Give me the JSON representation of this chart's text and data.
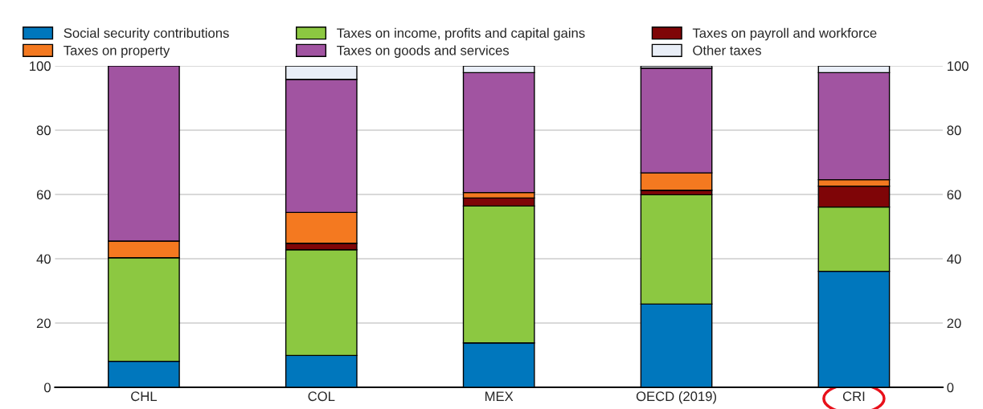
{
  "chart_data": {
    "type": "bar",
    "stacked": true,
    "categories": [
      "CHL",
      "COL",
      "MEX",
      "OECD (2019)",
      "CRI"
    ],
    "series": [
      {
        "name": "Social security contributions",
        "color": "#0077bd",
        "values": [
          8.1,
          9.9,
          13.8,
          25.9,
          36.1
        ]
      },
      {
        "name": "Taxes on income, profits and capital gains",
        "color": "#8cc841",
        "values": [
          32.2,
          32.9,
          42.6,
          34.0,
          20.0
        ]
      },
      {
        "name": "Taxes on payroll and workforce",
        "color": "#7f0507",
        "values": [
          null,
          2.0,
          2.5,
          1.4,
          6.5
        ]
      },
      {
        "name": "Taxes on property",
        "color": "#f47920",
        "values": [
          5.2,
          9.6,
          1.7,
          5.4,
          2.0
        ]
      },
      {
        "name": "Taxes on goods and services",
        "color": "#a154a1",
        "values": [
          54.5,
          41.4,
          37.3,
          32.6,
          33.3
        ]
      },
      {
        "name": "Other taxes",
        "color": "#e9eef7",
        "values": [
          null,
          4.2,
          2.1,
          0.7,
          2.1
        ]
      }
    ],
    "ylim": [
      0,
      100
    ],
    "yticks": [
      0,
      20,
      40,
      60,
      80,
      100
    ],
    "y2lim": [
      0,
      100
    ],
    "y2ticks": [
      0,
      20,
      40,
      60,
      80,
      100
    ],
    "grid": "y",
    "legend": "top"
  }
}
